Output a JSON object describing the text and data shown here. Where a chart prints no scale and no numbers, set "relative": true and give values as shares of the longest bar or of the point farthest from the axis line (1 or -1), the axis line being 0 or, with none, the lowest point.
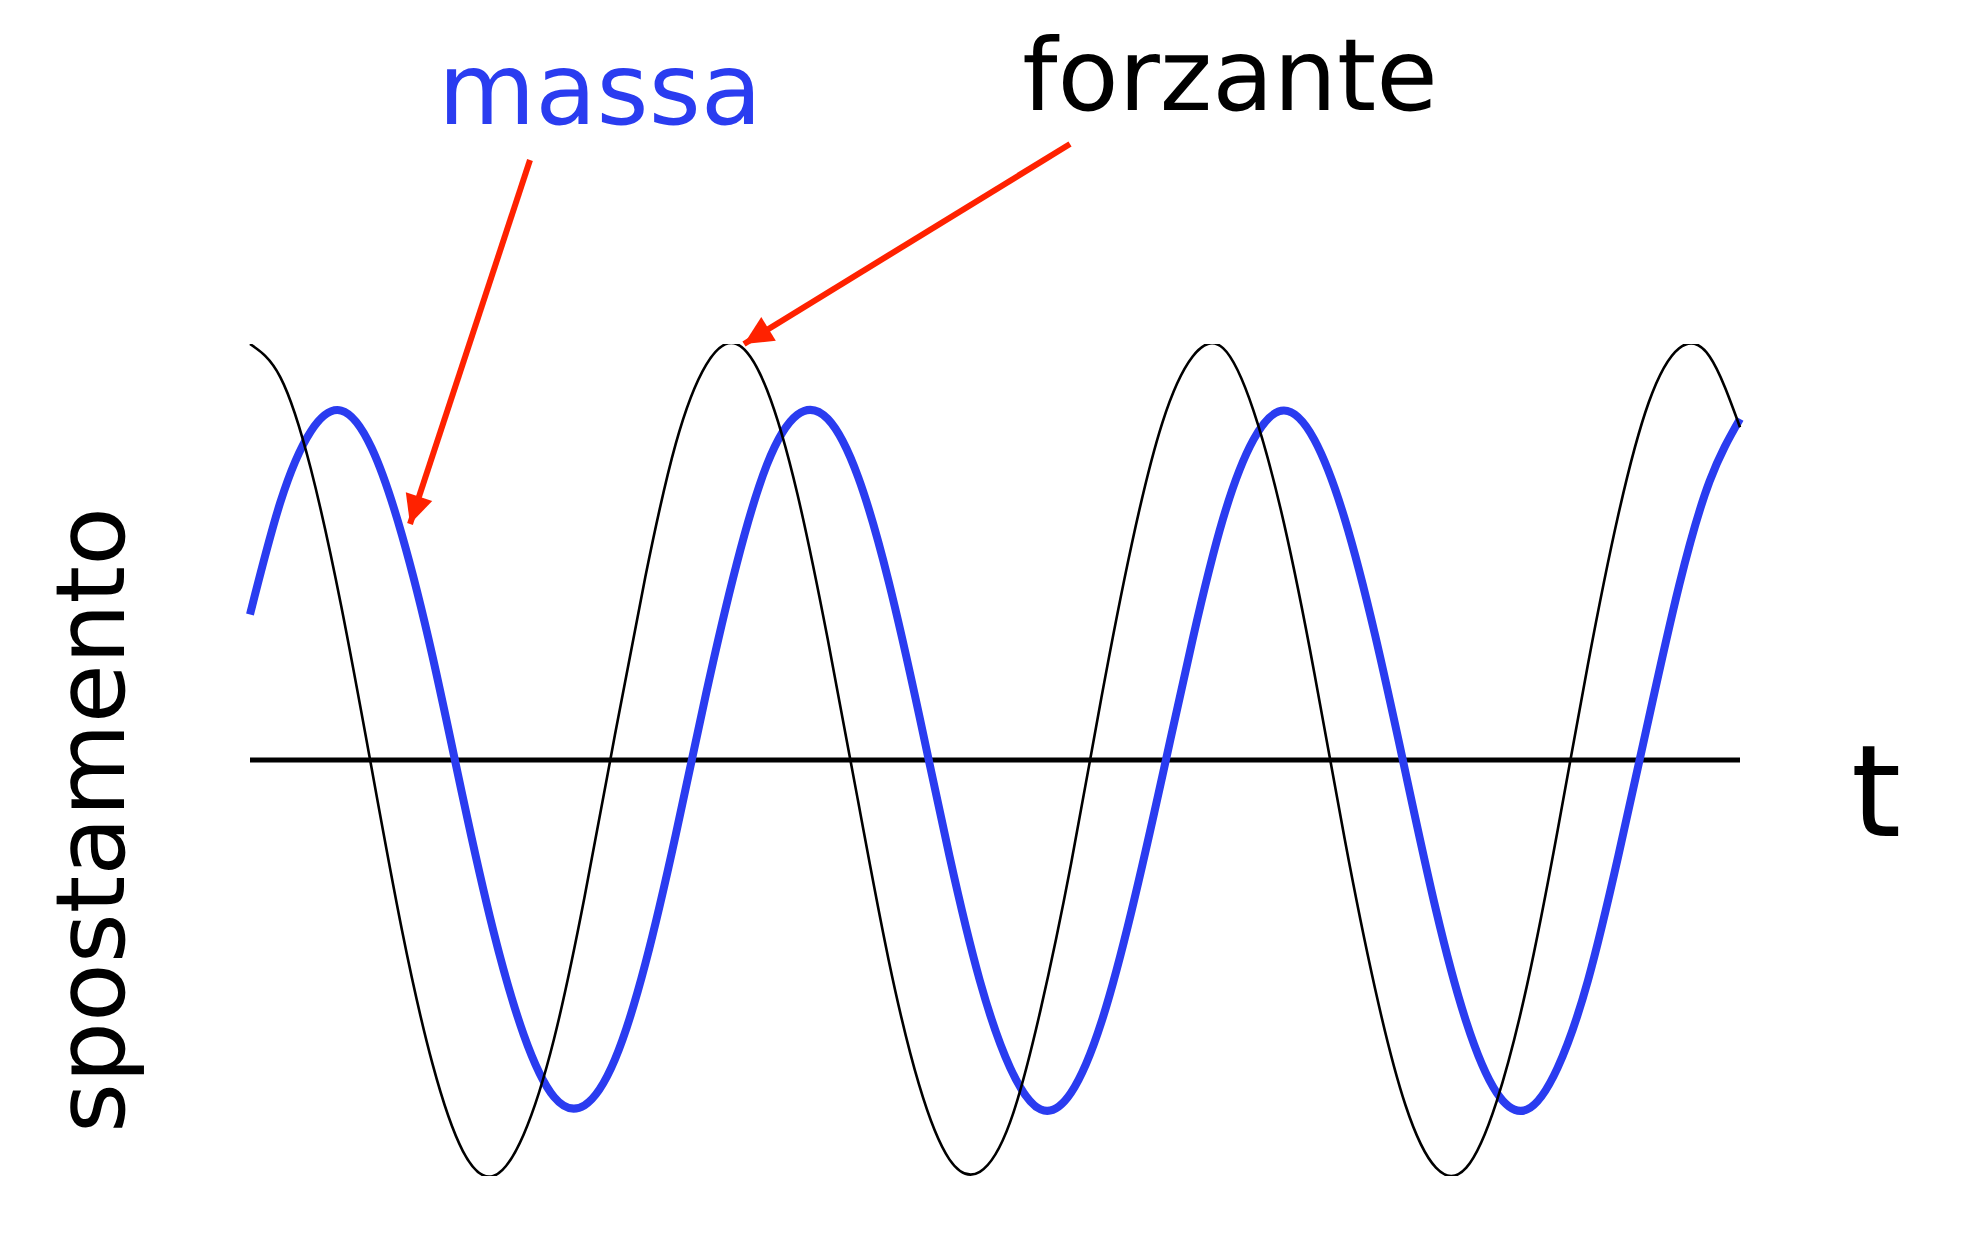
{
  "chart_data": {
    "type": "line",
    "relative": true,
    "xlabel": "t",
    "ylabel": "spostamento",
    "marker": "none",
    "categories": [
      null,
      null,
      null,
      null,
      null,
      null,
      null,
      null,
      null,
      null,
      null,
      null,
      null,
      null,
      null,
      null,
      null,
      null,
      null,
      null,
      null,
      null,
      null,
      null,
      null,
      null,
      null,
      null,
      null,
      null,
      null,
      null,
      null,
      null,
      null,
      null,
      null,
      null,
      null,
      null,
      null,
      null,
      null,
      null,
      null,
      null,
      null,
      null,
      null,
      null
    ],
    "series": [
      {
        "name": "massa",
        "color": "#2a3cf0",
        "values": [
          0.35,
          0.62,
          0.79,
          0.84,
          0.75,
          0.54,
          0.25,
          -0.09,
          -0.41,
          -0.66,
          -0.81,
          -0.83,
          -0.72,
          -0.49,
          -0.18,
          0.16,
          0.47,
          0.71,
          0.83,
          0.82,
          0.68,
          0.43,
          0.11,
          -0.23,
          -0.53,
          -0.74,
          -0.84,
          -0.8,
          -0.63,
          -0.36,
          -0.04,
          0.29,
          0.58,
          0.77,
          0.84,
          0.77,
          0.58,
          0.3,
          -0.03,
          -0.36,
          -0.63,
          -0.8,
          -0.84,
          -0.74,
          -0.53,
          -0.23,
          0.1,
          0.42,
          0.67,
          0.82
        ]
      },
      {
        "name": "forzante",
        "color": "#000000",
        "values": [
          1.0,
          0.92,
          0.7,
          0.37,
          -0.02,
          -0.41,
          -0.73,
          -0.94,
          -1.0,
          -0.9,
          -0.67,
          -0.33,
          0.06,
          0.44,
          0.76,
          0.95,
          1.0,
          0.89,
          0.64,
          0.29,
          -0.1,
          -0.48,
          -0.78,
          -0.96,
          -0.99,
          -0.87,
          -0.6,
          -0.25,
          0.15,
          0.52,
          0.81,
          0.97,
          0.99,
          0.84,
          0.57,
          0.21,
          -0.19,
          -0.55,
          -0.83,
          -0.98,
          -0.98,
          -0.82,
          -0.54,
          -0.17,
          0.23,
          0.59,
          0.86,
          0.99,
          0.97,
          0.8
        ]
      }
    ]
  }
}
